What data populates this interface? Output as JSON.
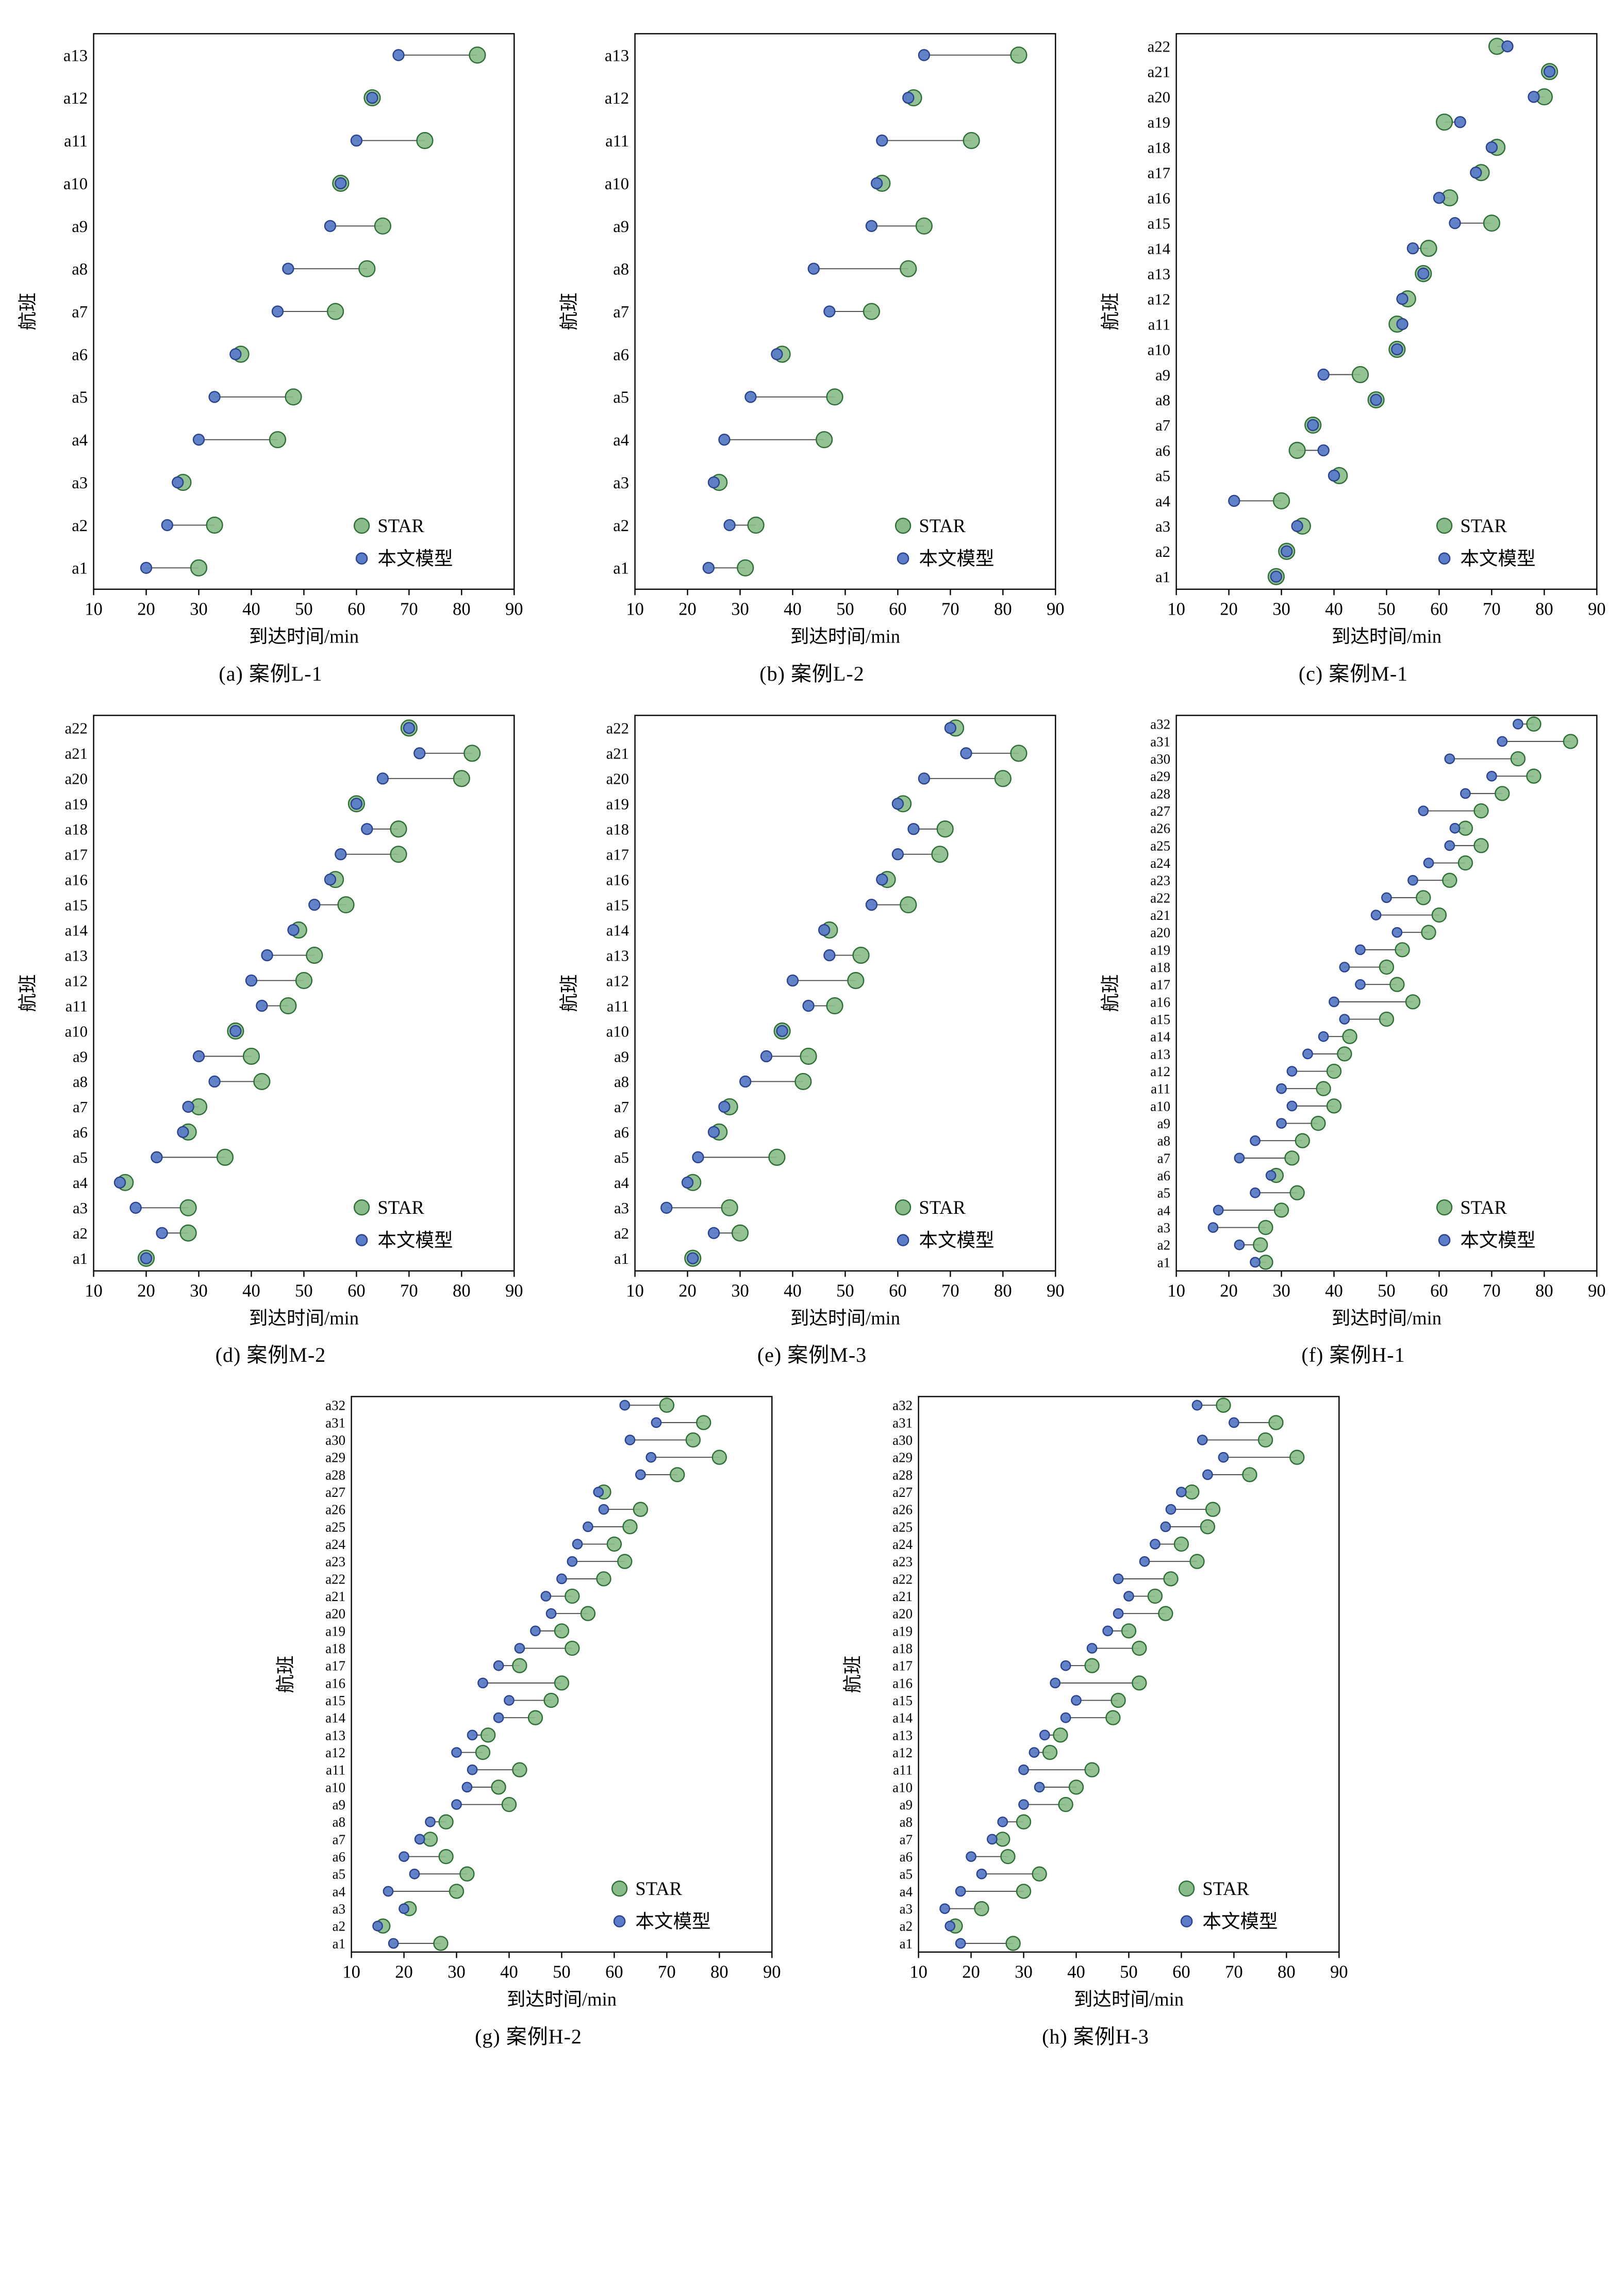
{
  "colors": {
    "star_fill": "#8abb8a",
    "star_stroke": "#2d6e35",
    "model_fill": "#5b7cc6",
    "model_stroke": "#2a418e",
    "connector": "#4a4a4a",
    "frame": "#000000"
  },
  "chart_data": [
    {
      "type": "scatter",
      "caption": "(a) 案例L-1",
      "xlabel": "到达时间/min",
      "ylabel": "航班",
      "xlim": [
        10,
        90
      ],
      "xticks": [
        10,
        20,
        30,
        40,
        50,
        60,
        70,
        80,
        90
      ],
      "legend_position": "bottom-right",
      "flights": [
        "a1",
        "a2",
        "a3",
        "a4",
        "a5",
        "a6",
        "a7",
        "a8",
        "a9",
        "a10",
        "a11",
        "a12",
        "a13"
      ],
      "series": [
        {
          "name": "STAR",
          "values": [
            30,
            33,
            27,
            45,
            48,
            38,
            56,
            62,
            65,
            57,
            73,
            63,
            83
          ]
        },
        {
          "name": "本文模型",
          "values": [
            20,
            24,
            26,
            30,
            33,
            37,
            45,
            47,
            55,
            57,
            60,
            63,
            68
          ]
        }
      ]
    },
    {
      "type": "scatter",
      "caption": "(b) 案例L-2",
      "xlabel": "到达时间/min",
      "ylabel": "航班",
      "xlim": [
        10,
        90
      ],
      "xticks": [
        10,
        20,
        30,
        40,
        50,
        60,
        70,
        80,
        90
      ],
      "legend_position": "bottom-right",
      "flights": [
        "a1",
        "a2",
        "a3",
        "a4",
        "a5",
        "a6",
        "a7",
        "a8",
        "a9",
        "a10",
        "a11",
        "a12",
        "a13"
      ],
      "series": [
        {
          "name": "STAR",
          "values": [
            31,
            33,
            26,
            46,
            48,
            38,
            55,
            62,
            65,
            57,
            74,
            63,
            83
          ]
        },
        {
          "name": "本文模型",
          "values": [
            24,
            28,
            25,
            27,
            32,
            37,
            47,
            44,
            55,
            56,
            57,
            62,
            65
          ]
        }
      ]
    },
    {
      "type": "scatter",
      "caption": "(c) 案例M-1",
      "xlabel": "到达时间/min",
      "ylabel": "航班",
      "xlim": [
        10,
        90
      ],
      "xticks": [
        10,
        20,
        30,
        40,
        50,
        60,
        70,
        80,
        90
      ],
      "legend_position": "bottom-right",
      "flights": [
        "a1",
        "a2",
        "a3",
        "a4",
        "a5",
        "a6",
        "a7",
        "a8",
        "a9",
        "a10",
        "a11",
        "a12",
        "a13",
        "a14",
        "a15",
        "a16",
        "a17",
        "a18",
        "a19",
        "a20",
        "a21",
        "a22"
      ],
      "series": [
        {
          "name": "STAR",
          "values": [
            29,
            31,
            34,
            30,
            41,
            33,
            36,
            48,
            45,
            52,
            52,
            54,
            57,
            58,
            70,
            62,
            68,
            71,
            61,
            80,
            81,
            71
          ]
        },
        {
          "name": "本文模型",
          "values": [
            29,
            31,
            33,
            21,
            40,
            38,
            36,
            48,
            38,
            52,
            53,
            53,
            57,
            55,
            63,
            60,
            67,
            70,
            64,
            78,
            81,
            73
          ]
        }
      ]
    },
    {
      "type": "scatter",
      "caption": "(d) 案例M-2",
      "xlabel": "到达时间/min",
      "ylabel": "航班",
      "xlim": [
        10,
        90
      ],
      "xticks": [
        10,
        20,
        30,
        40,
        50,
        60,
        70,
        80,
        90
      ],
      "legend_position": "bottom-right",
      "flights": [
        "a1",
        "a2",
        "a3",
        "a4",
        "a5",
        "a6",
        "a7",
        "a8",
        "a9",
        "a10",
        "a11",
        "a12",
        "a13",
        "a14",
        "a15",
        "a16",
        "a17",
        "a18",
        "a19",
        "a20",
        "a21",
        "a22"
      ],
      "series": [
        {
          "name": "STAR",
          "values": [
            20,
            28,
            28,
            16,
            35,
            28,
            30,
            42,
            40,
            37,
            47,
            50,
            52,
            49,
            58,
            56,
            68,
            68,
            60,
            80,
            82,
            70
          ]
        },
        {
          "name": "本文模型",
          "values": [
            20,
            23,
            18,
            15,
            22,
            27,
            28,
            33,
            30,
            37,
            42,
            40,
            43,
            48,
            52,
            55,
            57,
            62,
            60,
            65,
            72,
            70
          ]
        }
      ]
    },
    {
      "type": "scatter",
      "caption": "(e) 案例M-3",
      "xlabel": "到达时间/min",
      "ylabel": "航班",
      "xlim": [
        10,
        90
      ],
      "xticks": [
        10,
        20,
        30,
        40,
        50,
        60,
        70,
        80,
        90
      ],
      "legend_position": "bottom-right",
      "flights": [
        "a1",
        "a2",
        "a3",
        "a4",
        "a5",
        "a6",
        "a7",
        "a8",
        "a9",
        "a10",
        "a11",
        "a12",
        "a13",
        "a14",
        "a15",
        "a16",
        "a17",
        "a18",
        "a19",
        "a20",
        "a21",
        "a22"
      ],
      "series": [
        {
          "name": "STAR",
          "values": [
            21,
            30,
            28,
            21,
            37,
            26,
            28,
            42,
            43,
            38,
            48,
            52,
            53,
            47,
            62,
            58,
            68,
            69,
            61,
            80,
            83,
            71
          ]
        },
        {
          "name": "本文模型",
          "values": [
            21,
            25,
            16,
            20,
            22,
            25,
            27,
            31,
            35,
            38,
            43,
            40,
            47,
            46,
            55,
            57,
            60,
            63,
            60,
            65,
            73,
            70
          ]
        }
      ]
    },
    {
      "type": "scatter",
      "caption": "(f) 案例H-1",
      "xlabel": "到达时间/min",
      "ylabel": "航班",
      "xlim": [
        10,
        90
      ],
      "xticks": [
        10,
        20,
        30,
        40,
        50,
        60,
        70,
        80,
        90
      ],
      "legend_position": "bottom-right",
      "flights": [
        "a1",
        "a2",
        "a3",
        "a4",
        "a5",
        "a6",
        "a7",
        "a8",
        "a9",
        "a10",
        "a11",
        "a12",
        "a13",
        "a14",
        "a15",
        "a16",
        "a17",
        "a18",
        "a19",
        "a20",
        "a21",
        "a22",
        "a23",
        "a24",
        "a25",
        "a26",
        "a27",
        "a28",
        "a29",
        "a30",
        "a31",
        "a32"
      ],
      "series": [
        {
          "name": "STAR",
          "values": [
            27,
            26,
            27,
            30,
            33,
            29,
            32,
            34,
            37,
            40,
            38,
            40,
            42,
            43,
            50,
            55,
            52,
            50,
            53,
            58,
            60,
            57,
            62,
            65,
            68,
            65,
            68,
            72,
            78,
            75,
            85,
            78
          ]
        },
        {
          "name": "本文模型",
          "values": [
            25,
            22,
            17,
            18,
            25,
            28,
            22,
            25,
            30,
            32,
            30,
            32,
            35,
            38,
            42,
            40,
            45,
            42,
            45,
            52,
            48,
            50,
            55,
            58,
            62,
            63,
            57,
            65,
            70,
            62,
            72,
            75
          ]
        }
      ]
    },
    {
      "type": "scatter",
      "caption": "(g) 案例H-2",
      "xlabel": "到达时间/min",
      "ylabel": "航班",
      "xlim": [
        10,
        90
      ],
      "xticks": [
        10,
        20,
        30,
        40,
        50,
        60,
        70,
        80,
        90
      ],
      "legend_position": "bottom-right",
      "flights": [
        "a1",
        "a2",
        "a3",
        "a4",
        "a5",
        "a6",
        "a7",
        "a8",
        "a9",
        "a10",
        "a11",
        "a12",
        "a13",
        "a14",
        "a15",
        "a16",
        "a17",
        "a18",
        "a19",
        "a20",
        "a21",
        "a22",
        "a23",
        "a24",
        "a25",
        "a26",
        "a27",
        "a28",
        "a29",
        "a30",
        "a31",
        "a32"
      ],
      "series": [
        {
          "name": "STAR",
          "values": [
            27,
            16,
            21,
            30,
            32,
            28,
            25,
            28,
            40,
            38,
            42,
            35,
            36,
            45,
            48,
            50,
            42,
            52,
            50,
            55,
            52,
            58,
            62,
            60,
            63,
            65,
            58,
            72,
            80,
            75,
            77,
            70
          ]
        },
        {
          "name": "本文模型",
          "values": [
            18,
            15,
            20,
            17,
            22,
            20,
            23,
            25,
            30,
            32,
            33,
            30,
            33,
            38,
            40,
            35,
            38,
            42,
            45,
            48,
            47,
            50,
            52,
            53,
            55,
            58,
            57,
            65,
            67,
            63,
            68,
            62
          ]
        }
      ]
    },
    {
      "type": "scatter",
      "caption": "(h) 案例H-3",
      "xlabel": "到达时间/min",
      "ylabel": "航班",
      "xlim": [
        10,
        90
      ],
      "xticks": [
        10,
        20,
        30,
        40,
        50,
        60,
        70,
        80,
        90
      ],
      "legend_position": "bottom-right",
      "flights": [
        "a1",
        "a2",
        "a3",
        "a4",
        "a5",
        "a6",
        "a7",
        "a8",
        "a9",
        "a10",
        "a11",
        "a12",
        "a13",
        "a14",
        "a15",
        "a16",
        "a17",
        "a18",
        "a19",
        "a20",
        "a21",
        "a22",
        "a23",
        "a24",
        "a25",
        "a26",
        "a27",
        "a28",
        "a29",
        "a30",
        "a31",
        "a32"
      ],
      "series": [
        {
          "name": "STAR",
          "values": [
            28,
            17,
            22,
            30,
            33,
            27,
            26,
            30,
            38,
            40,
            43,
            35,
            37,
            47,
            48,
            52,
            43,
            52,
            50,
            57,
            55,
            58,
            63,
            60,
            65,
            66,
            62,
            73,
            82,
            76,
            78,
            68
          ]
        },
        {
          "name": "本文模型",
          "values": [
            18,
            16,
            15,
            18,
            22,
            20,
            24,
            26,
            30,
            33,
            30,
            32,
            34,
            38,
            40,
            36,
            38,
            43,
            46,
            48,
            50,
            48,
            53,
            55,
            57,
            58,
            60,
            65,
            68,
            64,
            70,
            63
          ]
        }
      ]
    }
  ]
}
